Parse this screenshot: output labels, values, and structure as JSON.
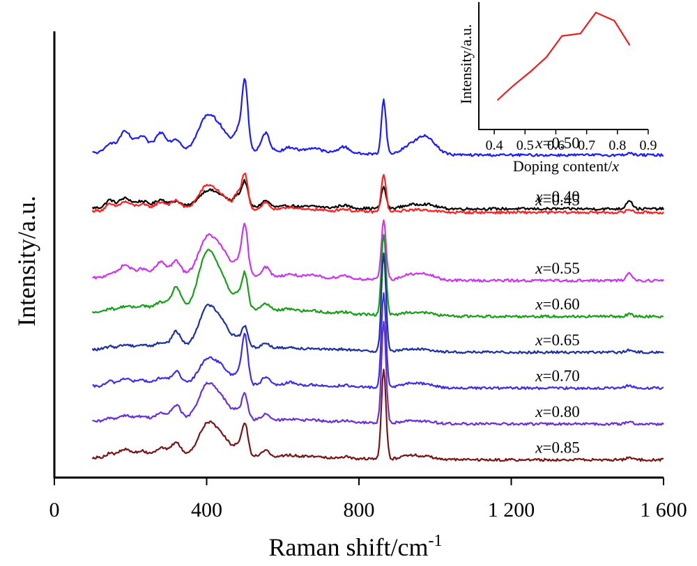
{
  "chart_data": [
    {
      "type": "line",
      "title": "",
      "xlabel": "Raman shift/cm",
      "xlabel_sup": "-1",
      "ylabel": "Intensity/a.u.",
      "xlim": [
        0,
        1600
      ],
      "x_range": [
        100,
        1600
      ],
      "xticks": [
        0,
        400,
        800,
        1200,
        1600
      ],
      "xtick_labels": [
        "0",
        "400",
        "800",
        "1 200",
        "1 600"
      ],
      "yticks_shown": false,
      "grid": false,
      "legend": "none",
      "label_prefix": "x",
      "peaks": [
        [
          145,
          8,
          10
        ],
        [
          185,
          10,
          16
        ],
        [
          230,
          8,
          15
        ],
        [
          280,
          10,
          15
        ],
        [
          320,
          12,
          12
        ],
        [
          400,
          16,
          22
        ],
        [
          440,
          12,
          22
        ],
        [
          480,
          12,
          8
        ],
        [
          500,
          28,
          8
        ],
        [
          555,
          10,
          10
        ],
        [
          620,
          6,
          15
        ],
        [
          680,
          5,
          20
        ],
        [
          760,
          6,
          15
        ],
        [
          865,
          30,
          6
        ],
        [
          930,
          6,
          20
        ],
        [
          975,
          8,
          25
        ],
        [
          1510,
          8,
          8
        ]
      ],
      "series": [
        {
          "name": "0.40",
          "label": "=0.40",
          "color": "#000000",
          "baseline": 0.0,
          "amps": [
            1.0,
            1.0,
            0.8,
            0.8,
            0.5,
            1.0,
            0.8,
            0.9,
            1.0,
            0.7,
            0.3,
            0.3,
            0.5,
            0.8,
            0.5,
            0.6,
            1.2
          ]
        },
        {
          "name": "0.45",
          "label": "=0.45",
          "color": "#ff1f1f",
          "baseline": 0.1,
          "amps": [
            0.8,
            0.9,
            0.7,
            0.8,
            0.8,
            1.5,
            1.0,
            1.2,
            1.4,
            0.8,
            0.6,
            0.3,
            0.4,
            1.4,
            0.3,
            0.3,
            0.4
          ]
        },
        {
          "name": "0.50",
          "label": "=0.50",
          "color": "#1a1aff",
          "baseline": -1.5,
          "amps": [
            1.2,
            2.2,
            2.0,
            2.0,
            1.0,
            2.2,
            1.6,
            1.4,
            2.8,
            2.0,
            0.8,
            1.0,
            1.2,
            2.0,
            1.2,
            2.5,
            0.3
          ]
        },
        {
          "name": "0.55",
          "label": "=0.55",
          "color": "#cc33ee",
          "baseline": 2.0,
          "amps": [
            0.5,
            1.3,
            1.0,
            1.5,
            1.3,
            2.4,
            2.0,
            1.0,
            2.0,
            1.0,
            0.5,
            0.5,
            0.6,
            2.2,
            0.8,
            0.8,
            1.0
          ]
        },
        {
          "name": "0.60",
          "label": "=0.60",
          "color": "#179e17",
          "baseline": 3.0,
          "amps": [
            0.4,
            0.5,
            0.6,
            0.8,
            2.0,
            3.6,
            2.4,
            1.0,
            1.4,
            0.7,
            0.4,
            0.3,
            0.3,
            3.0,
            0.5,
            0.4,
            0.3
          ]
        },
        {
          "name": "0.65",
          "label": "=0.65",
          "color": "#1c2f9e",
          "baseline": 4.0,
          "amps": [
            0.3,
            0.4,
            0.4,
            0.5,
            1.4,
            2.5,
            2.0,
            0.6,
            0.8,
            0.5,
            0.2,
            0.2,
            0.2,
            3.6,
            0.4,
            0.3,
            0.3
          ]
        },
        {
          "name": "0.70",
          "label": "=0.70",
          "color": "#3d2ee6",
          "baseline": 5.0,
          "amps": [
            0.6,
            0.8,
            0.7,
            0.8,
            1.2,
            1.6,
            1.4,
            0.8,
            2.0,
            0.9,
            0.6,
            0.3,
            0.3,
            3.5,
            0.7,
            0.5,
            0.4
          ]
        },
        {
          "name": "0.80",
          "label": "=0.80",
          "color": "#6a2ed6",
          "baseline": 6.0,
          "amps": [
            0.4,
            0.6,
            0.5,
            0.7,
            1.3,
            2.2,
            1.6,
            0.6,
            1.0,
            0.6,
            0.3,
            0.3,
            0.3,
            3.7,
            0.5,
            0.3,
            0.3
          ]
        },
        {
          "name": "0.85",
          "label": "=0.85",
          "color": "#7a1414",
          "baseline": 7.0,
          "amps": [
            0.5,
            0.8,
            0.7,
            0.9,
            1.2,
            2.0,
            1.6,
            0.7,
            1.3,
            0.6,
            0.3,
            0.3,
            0.3,
            3.3,
            0.7,
            0.4,
            0.3
          ]
        }
      ]
    },
    {
      "type": "line",
      "title": "",
      "xlabel": "Doping content/",
      "xlabel_var": "x",
      "ylabel": "Intensity/a.u.",
      "xlim": [
        0.35,
        0.9
      ],
      "xticks": [
        0.4,
        0.5,
        0.6,
        0.7,
        0.8,
        0.9
      ],
      "xtick_labels": [
        "0.4",
        "0.5",
        "0.6",
        "0.7",
        "0.8",
        "0.9"
      ],
      "yticks_shown": false,
      "color": "#ee1c1c",
      "x": [
        0.41,
        0.46,
        0.52,
        0.57,
        0.62,
        0.68,
        0.73,
        0.79,
        0.84
      ],
      "y": [
        0.25,
        0.37,
        0.5,
        0.62,
        0.8,
        0.82,
        1.0,
        0.93,
        0.72
      ]
    }
  ]
}
